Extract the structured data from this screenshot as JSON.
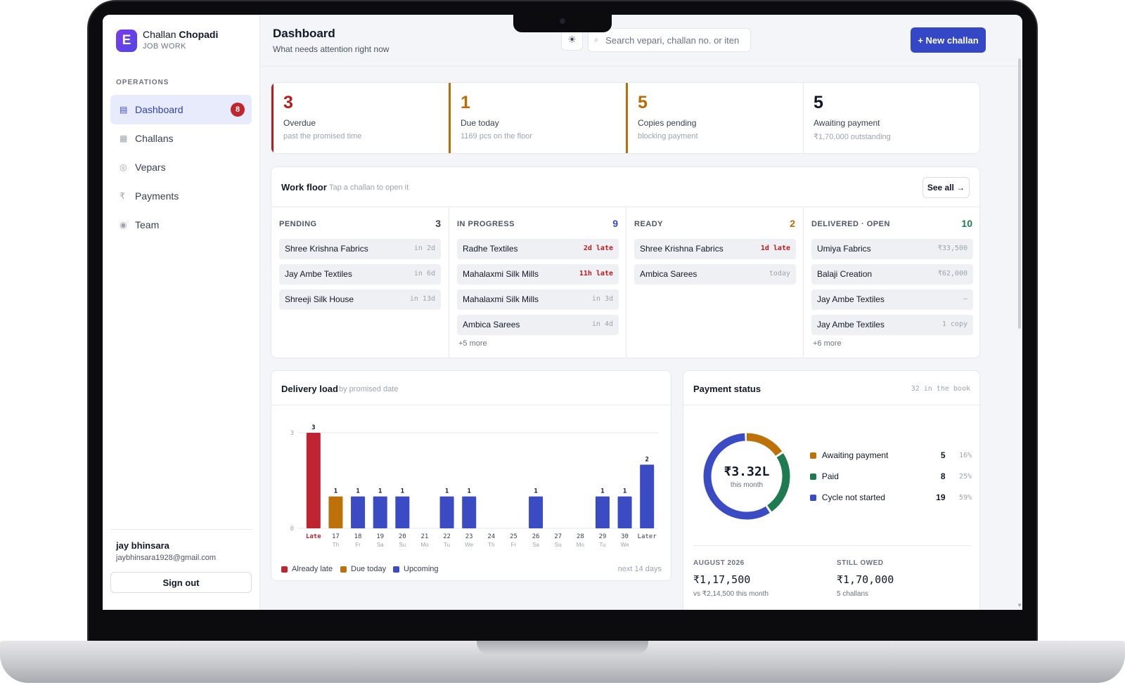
{
  "app": {
    "brand_light": "Challan",
    "brand_bold": "Chopadi",
    "brand_sub": "JOB WORK",
    "logo_glyph": "E"
  },
  "sidebar": {
    "section_label": "OPERATIONS",
    "items": [
      {
        "label": "Dashboard",
        "icon": "dashboard-icon",
        "glyph": "▤",
        "active": true,
        "badge": "8"
      },
      {
        "label": "Challans",
        "icon": "challans-icon",
        "glyph": "▦",
        "active": false
      },
      {
        "label": "Vepars",
        "icon": "vepars-icon",
        "glyph": "◎",
        "active": false
      },
      {
        "label": "Payments",
        "icon": "rupee-icon",
        "glyph": "₹",
        "active": false
      },
      {
        "label": "Team",
        "icon": "team-icon",
        "glyph": "◉",
        "active": false
      }
    ],
    "user_name": "jay bhinsara",
    "user_email": "jaybhinsara1928@gmail.com",
    "sign_out": "Sign out"
  },
  "header": {
    "title": "Dashboard",
    "subtitle": "What needs attention right now",
    "theme_glyph": "☀",
    "search_glyph": "⌕",
    "search_placeholder": "Search vepari, challan no. or iten",
    "new_button": "+ New challan"
  },
  "stats": [
    {
      "value": "3",
      "label": "Overdue",
      "sub": "past the promised time",
      "color": "#b91c1c"
    },
    {
      "value": "1",
      "label": "Due today",
      "sub": "1169 pcs on the floor",
      "color": "#b86e08"
    },
    {
      "value": "5",
      "label": "Copies pending",
      "sub": "blocking payment",
      "color": "#b86e08"
    },
    {
      "value": "5",
      "label": "Awaiting payment",
      "sub": "₹1,70,000 outstanding",
      "color": "#111827"
    }
  ],
  "work_floor": {
    "title": "Work floor",
    "hint": "Tap a challan to open it",
    "see_all": "See all →",
    "columns": [
      {
        "title": "PENDING",
        "count": "3",
        "count_color": "#374151",
        "more": "",
        "rows": [
          {
            "name": "Shree Krishna Fabrics",
            "meta": "in 2d",
            "late": false
          },
          {
            "name": "Jay Ambe Textiles",
            "meta": "in 6d",
            "late": false
          },
          {
            "name": "Shreeji Silk House",
            "meta": "in 13d",
            "late": false
          }
        ]
      },
      {
        "title": "IN PROGRESS",
        "count": "9",
        "count_color": "#3447c7",
        "more": "+5 more",
        "rows": [
          {
            "name": "Radhe Textiles",
            "meta": "2d late",
            "late": true
          },
          {
            "name": "Mahalaxmi Silk Mills",
            "meta": "11h late",
            "late": true
          },
          {
            "name": "Mahalaxmi Silk Mills",
            "meta": "in 3d",
            "late": false
          },
          {
            "name": "Ambica Sarees",
            "meta": "in 4d",
            "late": false
          }
        ]
      },
      {
        "title": "READY",
        "count": "2",
        "count_color": "#b86e08",
        "more": "",
        "rows": [
          {
            "name": "Shree Krishna Fabrics",
            "meta": "1d late",
            "late": true
          },
          {
            "name": "Ambica Sarees",
            "meta": "today",
            "late": false
          }
        ]
      },
      {
        "title": "DELIVERED · OPEN",
        "count": "10",
        "count_color": "#1e7b4f",
        "more": "+6 more",
        "rows": [
          {
            "name": "Umiya Fabrics",
            "meta": "₹33,500",
            "late": false
          },
          {
            "name": "Balaji Creation",
            "meta": "₹62,000",
            "late": false
          },
          {
            "name": "Jay Ambe Textiles",
            "meta": "–",
            "late": false
          },
          {
            "name": "Jay Ambe Textiles",
            "meta": "1 copy",
            "late": false
          }
        ]
      }
    ]
  },
  "delivery": {
    "title": "Delivery load",
    "hint": "by promised date",
    "next_days": "next 14 days",
    "legend": [
      {
        "label": "Already late",
        "color": "#be2530"
      },
      {
        "label": "Due today",
        "color": "#bd7209"
      },
      {
        "label": "Upcoming",
        "color": "#3b4bc4"
      }
    ]
  },
  "chart_data": {
    "type": "bar",
    "title": "Delivery load",
    "categories": [
      "Late",
      "17",
      "18",
      "19",
      "20",
      "21",
      "22",
      "23",
      "24",
      "25",
      "26",
      "27",
      "28",
      "29",
      "30",
      "Later"
    ],
    "day_labels": [
      "",
      "Th",
      "Fr",
      "Sa",
      "Su",
      "Mo",
      "Tu",
      "We",
      "Th",
      "Fr",
      "Sa",
      "Su",
      "Mo",
      "Tu",
      "We",
      ""
    ],
    "values": [
      3,
      1,
      1,
      1,
      1,
      0,
      1,
      1,
      0,
      0,
      1,
      0,
      0,
      1,
      1,
      2
    ],
    "series_kind": [
      "late",
      "today",
      "upcoming",
      "upcoming",
      "upcoming",
      "upcoming",
      "upcoming",
      "upcoming",
      "upcoming",
      "upcoming",
      "upcoming",
      "upcoming",
      "upcoming",
      "upcoming",
      "upcoming",
      "upcoming"
    ],
    "colors": {
      "late": "#be2530",
      "today": "#bd7209",
      "upcoming": "#3b4bc4"
    },
    "ylim": [
      0,
      3
    ],
    "yticks": [
      0,
      3
    ],
    "grid": true
  },
  "payment": {
    "title": "Payment status",
    "hint": "32 in the book",
    "center_value": "₹3.32L",
    "center_sub": "this month",
    "legend": [
      {
        "label": "Awaiting payment",
        "count": "5",
        "pct": "16%",
        "color": "#bd7209"
      },
      {
        "label": "Paid",
        "count": "8",
        "pct": "25%",
        "color": "#1e7b4f"
      },
      {
        "label": "Cycle not started",
        "count": "19",
        "pct": "59%",
        "color": "#3b4bc4"
      }
    ],
    "fractions": [
      0.16,
      0.25,
      0.59
    ],
    "summary": [
      {
        "label": "AUGUST 2026",
        "value": "₹1,17,500",
        "sub": "vs ₹2,14,500 this month"
      },
      {
        "label": "STILL OWED",
        "value": "₹1,70,000",
        "sub": "5 challans"
      }
    ]
  }
}
